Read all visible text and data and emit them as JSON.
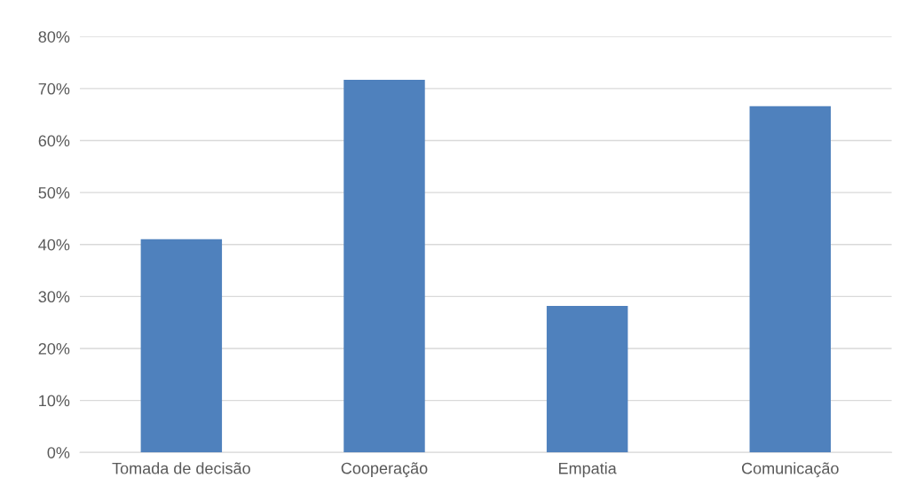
{
  "chart_data": {
    "type": "bar",
    "categories": [
      "Tomada de decisão",
      "Cooperação",
      "Empatia",
      "Comunicação"
    ],
    "values": [
      41,
      71.7,
      28.2,
      66.6
    ],
    "color": "#4f81bd",
    "ylim": [
      0,
      80
    ],
    "yticks": [
      {
        "value": 0,
        "label": "0%"
      },
      {
        "value": 10,
        "label": "10%"
      },
      {
        "value": 20,
        "label": "20%"
      },
      {
        "value": 30,
        "label": "30%"
      },
      {
        "value": 40,
        "label": "40%"
      },
      {
        "value": 50,
        "label": "50%"
      },
      {
        "value": 60,
        "label": "60%"
      },
      {
        "value": 70,
        "label": "70%"
      },
      {
        "value": 80,
        "label": "80%"
      }
    ],
    "grid": "y",
    "legend": false
  }
}
